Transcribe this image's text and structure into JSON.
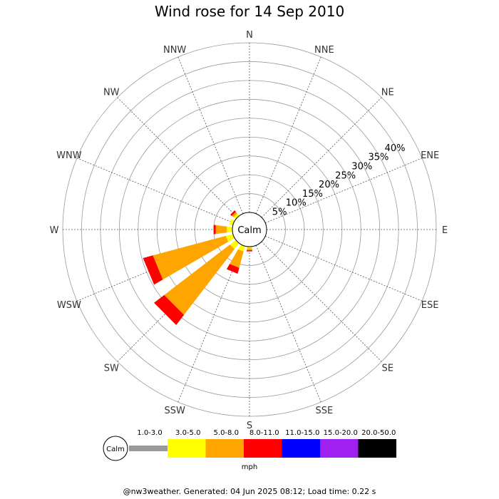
{
  "title": "Wind rose for 14 Sep 2010",
  "footer": "@nw3weather. Generated: 04 Jun 2025 08:12; Load time: 0.22 s",
  "chart_data": {
    "type": "windrose",
    "title": "Wind rose for 14 Sep 2010",
    "directions": [
      "N",
      "NNE",
      "NE",
      "ENE",
      "E",
      "ESE",
      "SE",
      "SSE",
      "S",
      "SSW",
      "SW",
      "WSW",
      "W",
      "WNW",
      "NW",
      "NNW"
    ],
    "ring_labels": [
      "5%",
      "10%",
      "15%",
      "20%",
      "25%",
      "30%",
      "35%",
      "40%"
    ],
    "rmax": 45,
    "calm_label": "Calm",
    "unit": "mph",
    "speed_bins": [
      {
        "label": "Calm",
        "color": "#ffffff"
      },
      {
        "label": "1.0-3.0",
        "color": "#999999"
      },
      {
        "label": "3.0-5.0",
        "color": "#ffff00"
      },
      {
        "label": "5.0-8.0",
        "color": "#ffa500"
      },
      {
        "label": "8.0-11.0",
        "color": "#ff0000"
      },
      {
        "label": "11.0-15.0",
        "color": "#0000ff"
      },
      {
        "label": "15.0-20.0",
        "color": "#a020f0"
      },
      {
        "label": "20.0-50.0",
        "color": "#000000"
      }
    ],
    "series": [
      {
        "name": "3.0-5.0",
        "values": [
          0,
          0,
          0,
          0,
          0,
          0,
          0,
          0,
          0.5,
          1.5,
          2.0,
          2.0,
          1.5,
          1.0,
          0.8,
          0
        ]
      },
      {
        "name": "5.0-8.0",
        "values": [
          0,
          0,
          0,
          0,
          0,
          0,
          0,
          0,
          0.5,
          4.5,
          22.0,
          20.0,
          3.0,
          0,
          0.6,
          0
        ]
      },
      {
        "name": "8.0-11.0",
        "values": [
          0,
          0,
          0,
          0,
          0,
          0,
          0,
          0,
          0.3,
          1.6,
          3.4,
          2.7,
          0.5,
          0,
          0.5,
          0
        ]
      }
    ]
  }
}
